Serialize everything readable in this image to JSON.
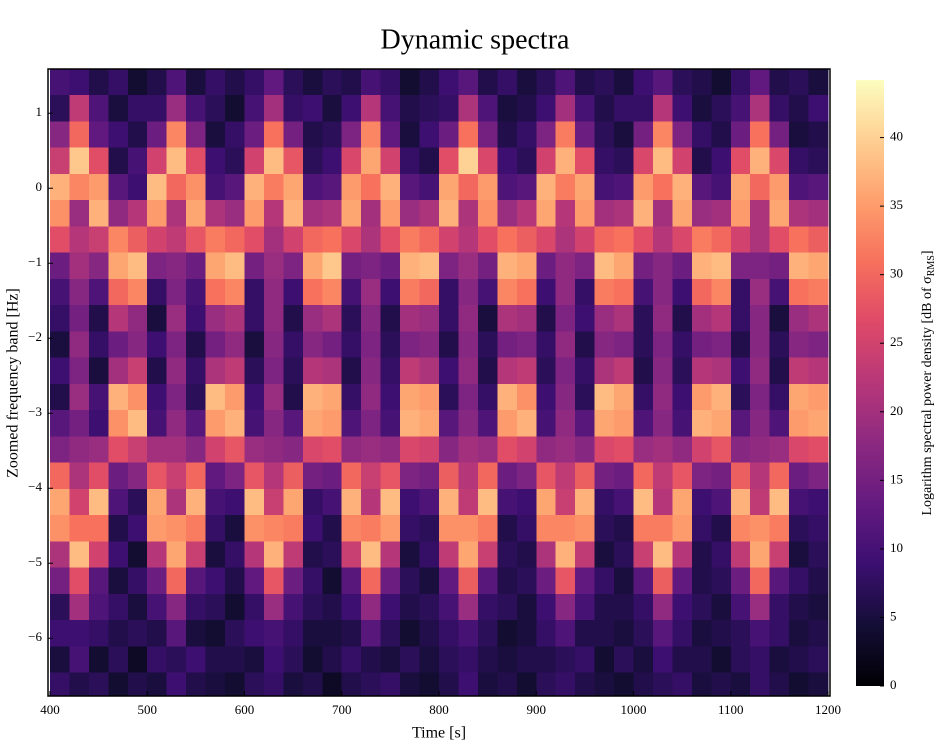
{
  "chart_data": {
    "type": "heatmap",
    "title": "Dynamic spectra",
    "xlabel": "Time [s]",
    "ylabel": "Zoomed frequency band [Hz]",
    "colorbar_label": {
      "text": "Logarithm spectral power density [dB of σ",
      "sub": "RMS",
      "end": "]"
    },
    "colormap": "magma",
    "xlim": [
      398,
      1202
    ],
    "ylim": [
      -6.77,
      1.59
    ],
    "clim": [
      0,
      44.2
    ],
    "xticks": [
      400,
      500,
      600,
      700,
      800,
      900,
      1000,
      1100,
      1200
    ],
    "yticks": [
      {
        "value": -6,
        "label": "−6"
      },
      {
        "value": -5,
        "label": "−5"
      },
      {
        "value": -4,
        "label": "−4"
      },
      {
        "value": -3,
        "label": "−3"
      },
      {
        "value": -2,
        "label": "−2"
      },
      {
        "value": -1,
        "label": "−1"
      },
      0,
      1
    ],
    "cticks": [
      0,
      5,
      10,
      15,
      20,
      25,
      30,
      35,
      40
    ],
    "x_edges": [
      400,
      420,
      440,
      460,
      480,
      500,
      520,
      540,
      560,
      580,
      600,
      620,
      640,
      660,
      680,
      700,
      720,
      740,
      760,
      780,
      800,
      820,
      840,
      860,
      880,
      900,
      920,
      940,
      960,
      980,
      1000,
      1020,
      1040,
      1060,
      1080,
      1100,
      1120,
      1140,
      1160,
      1180,
      1200
    ],
    "y_edges": [
      -6.8,
      -6.45,
      -6.1,
      -5.75,
      -5.4,
      -5.05,
      -4.7,
      -4.35,
      -4.0,
      -3.65,
      -3.3,
      -2.95,
      -2.6,
      -2.25,
      -1.9,
      -1.55,
      -1.2,
      -0.85,
      -0.5,
      -0.15,
      0.2,
      0.55,
      0.9,
      1.25,
      1.6
    ],
    "z": [
      [
        8,
        5,
        9,
        7,
        15,
        21,
        34,
        36,
        30,
        16,
        12,
        6,
        9,
        5,
        8,
        10,
        14,
        27,
        34,
        37,
        24,
        17,
        7,
        10
      ],
      [
        6,
        10,
        9,
        20,
        27,
        38,
        31,
        25,
        21,
        18,
        15,
        19,
        16,
        18,
        15,
        17,
        20,
        22,
        19,
        33,
        39,
        30,
        23,
        9
      ],
      [
        7,
        4,
        8,
        11,
        12,
        25,
        31,
        38,
        27,
        19,
        9,
        10,
        5,
        8,
        6,
        11,
        17,
        24,
        37,
        35,
        27,
        13,
        11,
        6
      ],
      [
        4,
        7,
        6,
        8,
        5,
        9,
        6,
        11,
        14,
        27,
        34,
        37,
        20,
        14,
        22,
        30,
        36,
        33,
        18,
        12,
        6,
        9,
        5,
        8
      ],
      [
        6,
        3,
        7,
        5,
        8,
        4,
        9,
        7,
        17,
        24,
        38,
        34,
        24,
        17,
        18,
        33,
        38,
        29,
        22,
        9,
        10,
        6,
        8,
        4
      ],
      [
        5,
        8,
        6,
        10,
        14,
        22,
        35,
        36,
        28,
        20,
        10,
        9,
        6,
        9,
        5,
        8,
        16,
        25,
        35,
        38,
        25,
        14,
        8,
        6
      ],
      [
        9,
        7,
        12,
        17,
        30,
        36,
        34,
        21,
        24,
        20,
        18,
        16,
        18,
        16,
        19,
        16,
        17,
        23,
        21,
        30,
        38,
        33,
        19,
        11
      ],
      [
        6,
        9,
        5,
        8,
        12,
        24,
        32,
        37,
        30,
        17,
        12,
        7,
        8,
        6,
        9,
        10,
        14,
        28,
        36,
        34,
        27,
        16,
        10,
        5
      ],
      [
        5,
        6,
        4,
        7,
        9,
        5,
        8,
        10,
        13,
        25,
        35,
        38,
        21,
        15,
        19,
        31,
        36,
        32,
        21,
        10,
        9,
        5,
        7,
        8
      ],
      [
        4,
        6,
        7,
        4,
        6,
        8,
        5,
        9,
        16,
        28,
        37,
        35,
        23,
        18,
        21,
        33,
        38,
        30,
        19,
        12,
        7,
        8,
        4,
        6
      ],
      [
        7,
        5,
        9,
        8,
        13,
        22,
        34,
        38,
        28,
        19,
        10,
        9,
        7,
        5,
        8,
        8,
        15,
        27,
        35,
        37,
        25,
        14,
        10,
        8
      ],
      [
        8,
        9,
        10,
        19,
        28,
        37,
        33,
        24,
        22,
        18,
        17,
        19,
        16,
        17,
        18,
        18,
        19,
        20,
        22,
        32,
        38,
        31,
        20,
        13
      ],
      [
        5,
        7,
        8,
        10,
        14,
        23,
        32,
        36,
        29,
        17,
        12,
        6,
        7,
        8,
        6,
        9,
        16,
        25,
        37,
        36,
        28,
        15,
        8,
        7
      ],
      [
        6,
        4,
        5,
        7,
        8,
        6,
        9,
        8,
        15,
        26,
        36,
        37,
        22,
        17,
        19,
        31,
        36,
        30,
        20,
        11,
        7,
        6,
        9,
        5
      ],
      [
        3,
        6,
        5,
        6,
        4,
        7,
        6,
        10,
        14,
        27,
        35,
        36,
        21,
        15,
        21,
        33,
        39,
        31,
        21,
        12,
        9,
        7,
        5,
        7
      ],
      [
        6,
        8,
        6,
        9,
        12,
        24,
        33,
        37,
        30,
        18,
        11,
        8,
        6,
        8,
        7,
        10,
        15,
        26,
        36,
        35,
        26,
        16,
        9,
        6
      ],
      [
        7,
        6,
        12,
        18,
        30,
        38,
        32,
        22,
        24,
        19,
        16,
        18,
        17,
        16,
        17,
        19,
        16,
        21,
        20,
        31,
        36,
        33,
        22,
        10
      ],
      [
        8,
        5,
        7,
        9,
        14,
        22,
        35,
        38,
        28,
        18,
        10,
        9,
        8,
        7,
        6,
        9,
        14,
        27,
        35,
        37,
        25,
        13,
        10,
        8
      ],
      [
        5,
        7,
        4,
        6,
        7,
        5,
        8,
        9,
        16,
        26,
        37,
        36,
        23,
        16,
        20,
        32,
        37,
        32,
        19,
        12,
        8,
        5,
        6,
        4
      ],
      [
        4,
        5,
        6,
        7,
        5,
        8,
        7,
        11,
        15,
        25,
        36,
        35,
        21,
        17,
        19,
        30,
        38,
        30,
        21,
        10,
        6,
        9,
        7,
        6
      ],
      [
        6,
        7,
        8,
        10,
        13,
        23,
        34,
        37,
        29,
        17,
        12,
        7,
        9,
        6,
        8,
        8,
        16,
        25,
        37,
        36,
        27,
        14,
        8,
        9
      ],
      [
        9,
        8,
        10,
        19,
        29,
        36,
        34,
        23,
        22,
        20,
        17,
        16,
        18,
        17,
        18,
        17,
        19,
        22,
        21,
        30,
        40,
        31,
        21,
        12
      ],
      [
        5,
        6,
        7,
        8,
        12,
        24,
        32,
        38,
        30,
        19,
        11,
        8,
        6,
        7,
        5,
        10,
        15,
        27,
        34,
        35,
        26,
        15,
        11,
        6
      ],
      [
        6,
        5,
        4,
        7,
        6,
        7,
        6,
        10,
        14,
        27,
        35,
        37,
        22,
        15,
        21,
        33,
        37,
        31,
        19,
        11,
        9,
        6,
        5,
        8
      ],
      [
        4,
        6,
        5,
        5,
        7,
        6,
        8,
        9,
        16,
        25,
        37,
        34,
        23,
        16,
        20,
        31,
        36,
        29,
        22,
        12,
        7,
        8,
        6,
        5
      ],
      [
        7,
        6,
        8,
        9,
        14,
        21,
        33,
        36,
        28,
        18,
        10,
        9,
        7,
        8,
        6,
        9,
        14,
        26,
        36,
        37,
        25,
        16,
        9,
        7
      ],
      [
        8,
        7,
        11,
        17,
        28,
        37,
        33,
        24,
        23,
        19,
        18,
        17,
        16,
        18,
        16,
        18,
        18,
        21,
        22,
        32,
        37,
        32,
        20,
        11
      ],
      [
        6,
        8,
        6,
        10,
        13,
        23,
        34,
        37,
        29,
        17,
        12,
        7,
        8,
        6,
        9,
        8,
        16,
        25,
        35,
        36,
        27,
        14,
        10,
        6
      ],
      [
        5,
        4,
        6,
        6,
        8,
        5,
        7,
        8,
        15,
        26,
        36,
        38,
        21,
        17,
        19,
        32,
        38,
        30,
        20,
        10,
        8,
        7,
        6,
        7
      ],
      [
        4,
        7,
        5,
        6,
        5,
        7,
        6,
        10,
        14,
        27,
        35,
        36,
        23,
        16,
        21,
        31,
        36,
        31,
        21,
        11,
        7,
        5,
        8,
        5
      ],
      [
        6,
        5,
        7,
        8,
        12,
        24,
        32,
        38,
        30,
        19,
        11,
        8,
        6,
        7,
        7,
        10,
        15,
        27,
        37,
        35,
        26,
        15,
        8,
        9
      ],
      [
        7,
        9,
        12,
        18,
        29,
        38,
        32,
        22,
        23,
        20,
        17,
        18,
        17,
        16,
        18,
        17,
        17,
        22,
        20,
        31,
        38,
        33,
        22,
        12
      ],
      [
        8,
        6,
        8,
        9,
        13,
        22,
        35,
        36,
        28,
        18,
        10,
        9,
        7,
        8,
        6,
        9,
        14,
        26,
        36,
        37,
        25,
        16,
        9,
        7
      ],
      [
        5,
        6,
        5,
        7,
        6,
        6,
        8,
        9,
        16,
        25,
        37,
        35,
        22,
        15,
        20,
        30,
        37,
        32,
        19,
        12,
        6,
        8,
        5,
        6
      ],
      [
        6,
        4,
        6,
        5,
        7,
        8,
        6,
        11,
        15,
        28,
        36,
        37,
        21,
        16,
        22,
        33,
        38,
        30,
        20,
        10,
        9,
        6,
        7,
        4
      ],
      [
        5,
        7,
        7,
        10,
        14,
        23,
        33,
        37,
        29,
        17,
        12,
        7,
        9,
        6,
        8,
        8,
        16,
        25,
        35,
        36,
        27,
        14,
        10,
        8
      ],
      [
        8,
        8,
        10,
        19,
        30,
        36,
        34,
        23,
        22,
        18,
        17,
        16,
        18,
        17,
        17,
        19,
        16,
        21,
        21,
        30,
        37,
        31,
        21,
        13
      ],
      [
        6,
        5,
        8,
        8,
        12,
        24,
        32,
        38,
        30,
        19,
        11,
        8,
        6,
        7,
        5,
        10,
        15,
        27,
        36,
        35,
        26,
        15,
        8,
        6
      ],
      [
        4,
        6,
        5,
        6,
        8,
        5,
        7,
        10,
        14,
        26,
        35,
        36,
        23,
        17,
        19,
        31,
        37,
        31,
        21,
        11,
        8,
        5,
        6,
        7
      ],
      [
        5,
        7,
        6,
        5,
        6,
        7,
        8,
        9,
        16,
        27,
        36,
        35,
        22,
        16,
        21,
        32,
        36,
        29,
        20,
        12,
        7,
        6,
        9,
        5
      ]
    ]
  }
}
